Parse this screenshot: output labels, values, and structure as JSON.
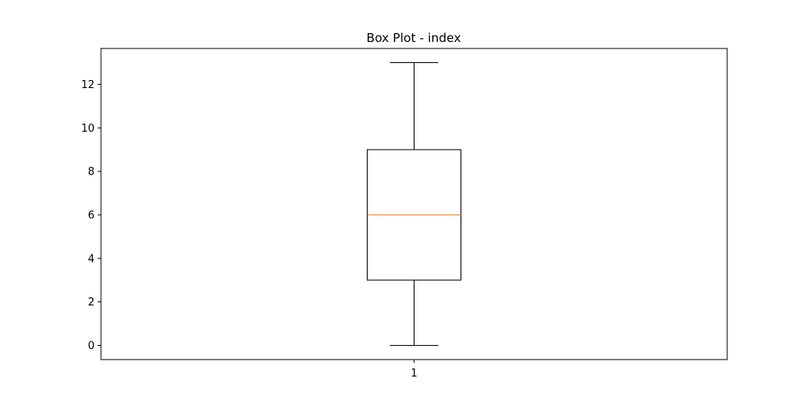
{
  "chart_data": {
    "type": "box",
    "title": "Box Plot - index",
    "xlabel": "",
    "ylabel": "",
    "categories": [
      "1"
    ],
    "boxes": [
      {
        "whisker_low": 0,
        "q1": 3,
        "median": 6,
        "q3": 9,
        "whisker_high": 13
      }
    ],
    "ylim": [
      -0.65,
      13.65
    ],
    "xlim": [
      0.5,
      1.5
    ],
    "yticks": [
      0,
      2,
      4,
      6,
      8,
      10,
      12
    ],
    "grid": false,
    "legend": "none",
    "colors": {
      "box": "#000000",
      "median": "#ff7f0e",
      "whisker": "#000000",
      "axes": "#000000"
    }
  }
}
